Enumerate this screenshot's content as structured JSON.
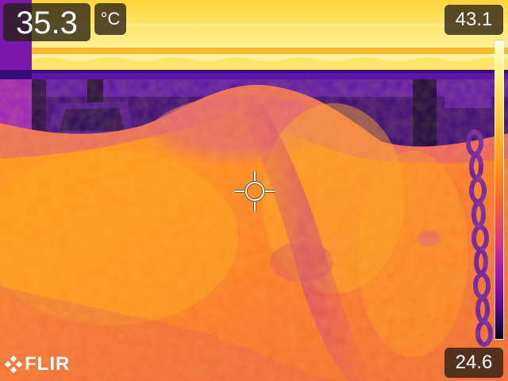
{
  "readout": {
    "spot_temperature": "35.3",
    "unit": "°C"
  },
  "scale": {
    "max": "43.1",
    "min": "24.6",
    "palette": "iron",
    "palette_colors": [
      "#ffffe0",
      "#ffd84a",
      "#ff8418",
      "#d83a78",
      "#6a0ea0",
      "#0a0420"
    ]
  },
  "brand": {
    "name": "FLIR"
  },
  "icons": {
    "crosshair": "spot-meter-crosshair-icon",
    "logo": "flir-logo-icon"
  }
}
